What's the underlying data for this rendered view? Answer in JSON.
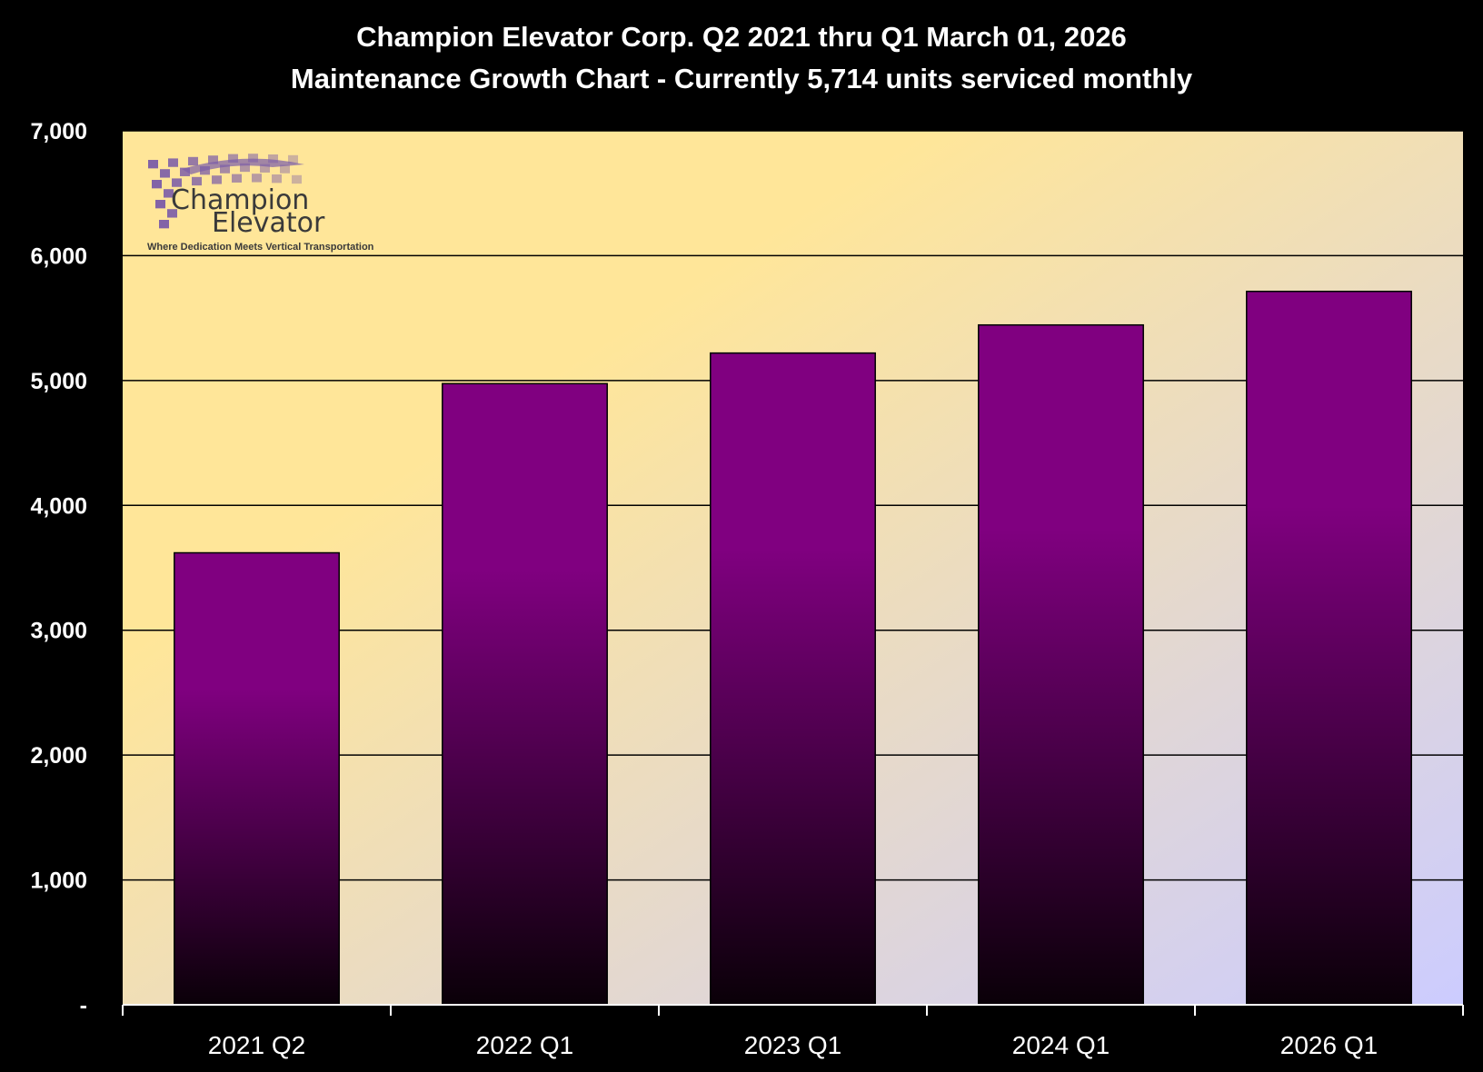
{
  "chart_data": {
    "type": "bar",
    "title": "Champion Elevator  Corp.  Q2 2021 thru Q1 March 01, 2026",
    "subtitle": "Maintenance Growth Chart - Currently 5,714 units serviced monthly",
    "categories": [
      "2021 Q2",
      "2022 Q1",
      "2023 Q1",
      "2024 Q1",
      "2026 Q1"
    ],
    "values": [
      3620,
      4975,
      5220,
      5445,
      5714
    ],
    "ylim": [
      0,
      7000
    ],
    "yticks": [
      "-",
      "1,000",
      "2,000",
      "3,000",
      "4,000",
      "5,000",
      "6,000",
      "7,000"
    ],
    "grid": true,
    "legend": "none",
    "xlabel": "",
    "ylabel": "",
    "colors": {
      "page_background": "#000000",
      "plot_gradient_start": "#FFE699",
      "plot_gradient_end": "#CCCCFF",
      "bar_top": "#800080",
      "bar_bottom": "#0A0008",
      "gridline": "#000000",
      "text": "#FFFFFF"
    }
  },
  "logo": {
    "line1": "Champion",
    "line2": "Elevator",
    "tagline": "Where Dedication Meets Vertical Transportation",
    "check_color": "#7B5CA8"
  }
}
